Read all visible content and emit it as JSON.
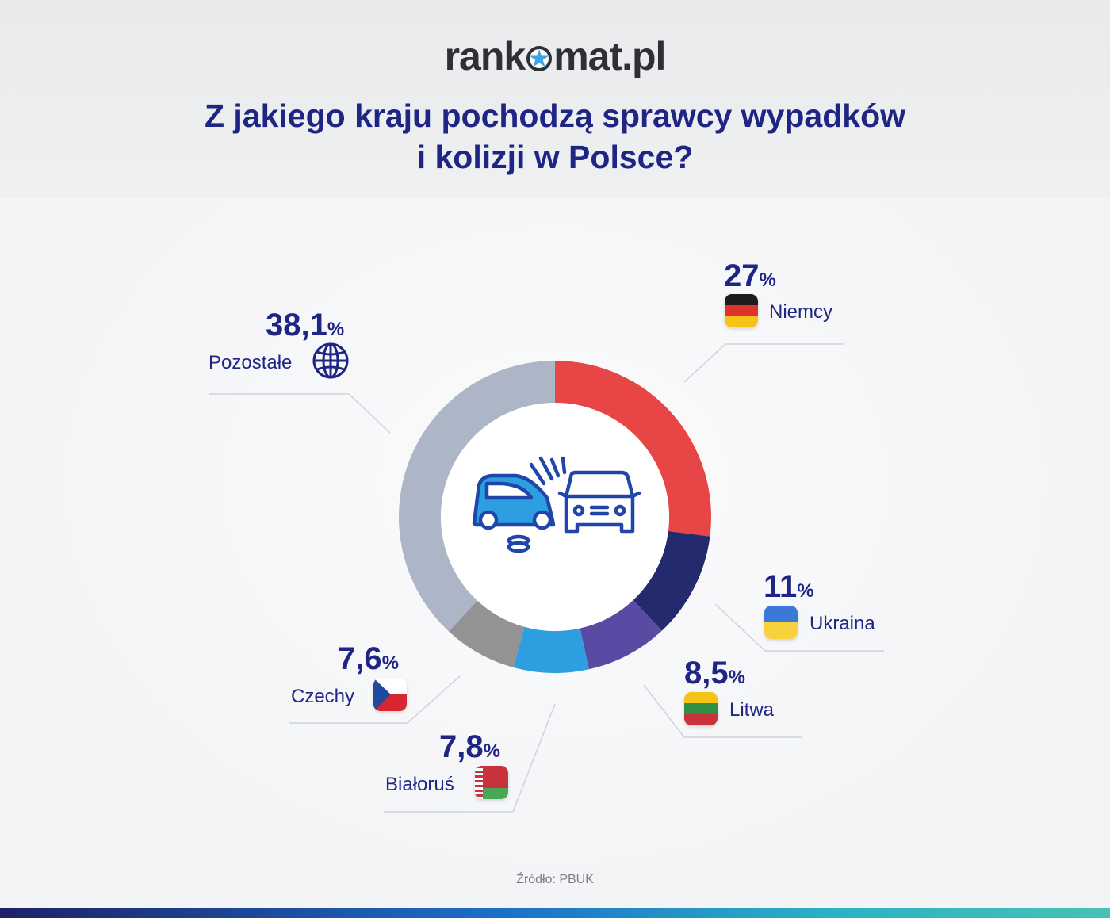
{
  "brand": {
    "text_before": "rank",
    "text_after": "mat.pl"
  },
  "title_line1": "Z jakiego kraju pochodzą sprawcy wypadków",
  "title_line2": "i kolizji w Polsce?",
  "source": "Źródło: PBUK",
  "colors": {
    "Niemcy": "#e84646",
    "Ukraina": "#232a6e",
    "Litwa": "#5b4aa4",
    "Białoruś": "#2d9fe0",
    "Czechy": "#939395",
    "Pozostałe": "#adb6c6",
    "text": "#1f2585"
  },
  "chart_data": {
    "type": "pie",
    "variant": "donut",
    "title": "Z jakiego kraju pochodzą sprawcy wypadków i kolizji w Polsce?",
    "unit": "%",
    "categories": [
      "Niemcy",
      "Ukraina",
      "Litwa",
      "Białoruś",
      "Czechy",
      "Pozostałe"
    ],
    "values": [
      27,
      11,
      8.5,
      7.8,
      7.6,
      38.1
    ],
    "value_labels": [
      "27",
      "11",
      "8,5",
      "7,8",
      "7,6",
      "38,1"
    ],
    "icons": [
      "flag-germany-icon",
      "flag-ukraine-icon",
      "flag-lithuania-icon",
      "flag-belarus-icon",
      "flag-czechia-icon",
      "globe-icon"
    ],
    "center_icon": "car-crash-icon"
  }
}
